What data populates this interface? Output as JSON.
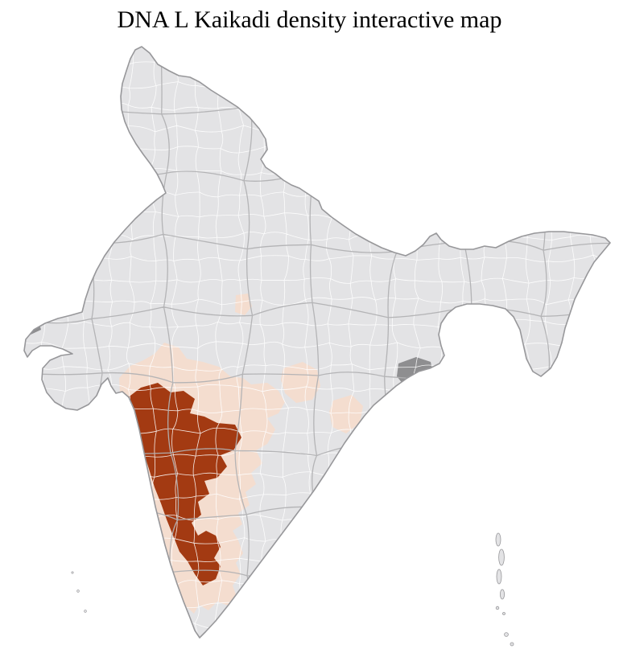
{
  "page": {
    "title": "DNA L Kaikadi density interactive map"
  },
  "map": {
    "type": "choropleth",
    "subject": "district-level density of DNA L Kaikadi across India",
    "colors": {
      "sea": "#ffffff",
      "district_fill": "#e3e3e5",
      "district_border": "#ffffff",
      "state_border": "#b1b1b3",
      "country_outline": "#97979a",
      "density_high": "#a33a12",
      "density_low": "#f4ddcf",
      "no_data": "#8e8e90"
    },
    "regions": [
      {
        "name": "high-density-cluster",
        "density": "high"
      },
      {
        "name": "low-density-halo",
        "density": "low"
      },
      {
        "name": "low-density-patch-north",
        "density": "low"
      },
      {
        "name": "low-density-patch-east-a",
        "density": "low"
      },
      {
        "name": "low-density-patch-east-b",
        "density": "low"
      },
      {
        "name": "no-data-patch-deccan",
        "density": "no-data"
      },
      {
        "name": "no-data-patch-west",
        "density": "no-data"
      }
    ]
  }
}
